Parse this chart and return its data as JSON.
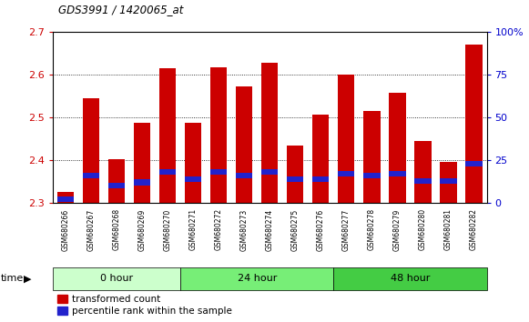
{
  "title": "GDS3991 / 1420065_at",
  "samples": [
    "GSM680266",
    "GSM680267",
    "GSM680268",
    "GSM680269",
    "GSM680270",
    "GSM680271",
    "GSM680272",
    "GSM680273",
    "GSM680274",
    "GSM680275",
    "GSM680276",
    "GSM680277",
    "GSM680278",
    "GSM680279",
    "GSM680280",
    "GSM680281",
    "GSM680282"
  ],
  "transformed_count": [
    2.325,
    2.545,
    2.403,
    2.487,
    2.615,
    2.487,
    2.617,
    2.572,
    2.628,
    2.435,
    2.507,
    2.6,
    2.515,
    2.557,
    2.445,
    2.397,
    2.672
  ],
  "percentile_rank": [
    2.0,
    16.0,
    10.0,
    12.0,
    18.0,
    14.0,
    18.0,
    16.0,
    18.0,
    14.0,
    14.0,
    17.0,
    16.0,
    17.0,
    13.0,
    13.0,
    23.0
  ],
  "ylim_left": [
    2.3,
    2.7
  ],
  "yticks_left": [
    2.3,
    2.4,
    2.5,
    2.6,
    2.7
  ],
  "yticks_right": [
    0,
    25,
    50,
    75,
    100
  ],
  "bar_color_red": "#cc0000",
  "bar_color_blue": "#2222cc",
  "groups": [
    {
      "label": "0 hour",
      "start": 0,
      "end": 4,
      "color": "#ccffcc"
    },
    {
      "label": "24 hour",
      "start": 5,
      "end": 10,
      "color": "#77ee77"
    },
    {
      "label": "48 hour",
      "start": 11,
      "end": 16,
      "color": "#44cc44"
    }
  ],
  "time_label": "time",
  "legend_red": "transformed count",
  "legend_blue": "percentile rank within the sample",
  "background_color": "#ffffff",
  "left_tick_color": "#cc0000",
  "right_tick_color": "#0000cc",
  "base_value": 2.3,
  "bar_width": 0.65
}
